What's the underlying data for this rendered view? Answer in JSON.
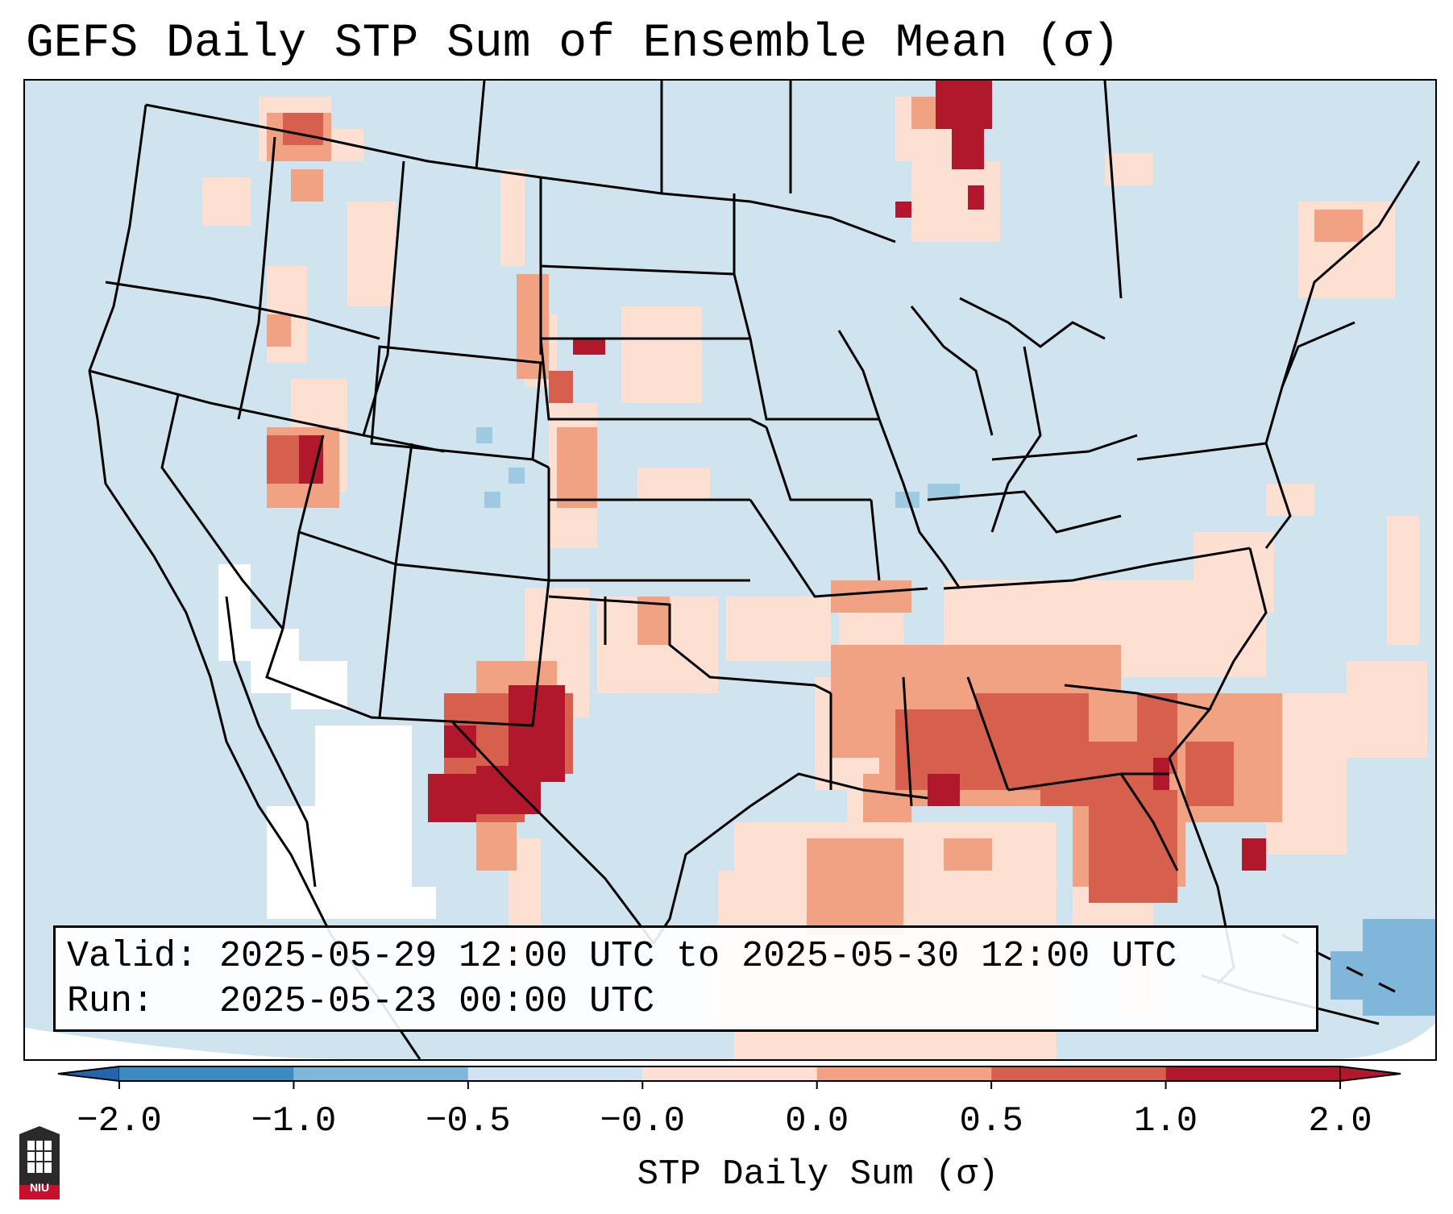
{
  "title": "GEFS Daily STP Sum of Ensemble Mean (σ)",
  "valid_line": "Valid: 2025-05-29 12:00 UTC to 2025-05-30 12:00 UTC",
  "run_line": "Run:   2025-05-23 00:00 UTC",
  "colorbar": {
    "label": "STP Daily Sum (σ)",
    "ticks": [
      "−2.0",
      "−1.0",
      "−0.5",
      "−0.0",
      "0.0",
      "0.5",
      "1.0",
      "2.0"
    ],
    "colors": [
      "#3b8bc2",
      "#7fb6d9",
      "#cfe4f0",
      "#f7f7f7",
      "#fde0d2",
      "#f1a283",
      "#d6604d",
      "#b2182b"
    ],
    "under_color": "#2166ac",
    "over_color": "#b2182b"
  },
  "map": {
    "background_color": "#d0e4f0",
    "neutral_color": "#ffffff"
  },
  "logo": {
    "text": "NIU"
  }
}
